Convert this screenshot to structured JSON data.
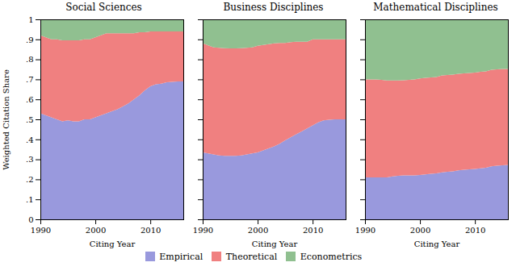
{
  "chart_data": [
    {
      "type": "area",
      "title": "Social Sciences",
      "xlabel": "Citing Year",
      "ylabel": "Weighted Citation Share",
      "stacked": true,
      "grid": false,
      "legend": "bottom",
      "x": [
        1990,
        1991,
        1992,
        1993,
        1994,
        1995,
        1996,
        1997,
        1998,
        1999,
        2000,
        2001,
        2002,
        2003,
        2004,
        2005,
        2006,
        2007,
        2008,
        2009,
        2010,
        2011,
        2012,
        2013,
        2014,
        2015,
        2016
      ],
      "xlim": [
        1990,
        2016
      ],
      "xticks": [
        1990,
        2000,
        2010
      ],
      "ylim": [
        0,
        1
      ],
      "yticks": [
        0,
        {
          "value": 0.1,
          "label": ".1"
        },
        {
          "value": 0.2,
          "label": ".2"
        },
        {
          "value": 0.3,
          "label": ".3"
        },
        {
          "value": 0.4,
          "label": ".4"
        },
        {
          "value": 0.5,
          "label": ".5"
        },
        {
          "value": 0.6,
          "label": ".6"
        },
        {
          "value": 0.7,
          "label": ".7"
        },
        {
          "value": 0.8,
          "label": ".8"
        },
        {
          "value": 0.9,
          "label": ".9"
        },
        1
      ],
      "series": [
        {
          "name": "Empirical",
          "color": "#9999dd",
          "values": [
            0.53,
            0.52,
            0.51,
            0.5,
            0.49,
            0.495,
            0.49,
            0.49,
            0.5,
            0.5,
            0.51,
            0.52,
            0.53,
            0.54,
            0.55,
            0.565,
            0.58,
            0.6,
            0.62,
            0.645,
            0.665,
            0.675,
            0.678,
            0.685,
            0.688,
            0.69,
            0.69
          ]
        },
        {
          "name": "Theoretical",
          "color": "#f08080",
          "values": [
            0.39,
            0.39,
            0.39,
            0.4,
            0.405,
            0.4,
            0.405,
            0.405,
            0.4,
            0.4,
            0.4,
            0.4,
            0.4,
            0.39,
            0.38,
            0.365,
            0.35,
            0.33,
            0.315,
            0.29,
            0.275,
            0.265,
            0.262,
            0.255,
            0.252,
            0.25,
            0.25
          ]
        },
        {
          "name": "Econometrics",
          "color": "#90c090",
          "values": [
            0.08,
            0.09,
            0.1,
            0.1,
            0.105,
            0.105,
            0.105,
            0.105,
            0.1,
            0.1,
            0.09,
            0.08,
            0.07,
            0.07,
            0.07,
            0.07,
            0.07,
            0.07,
            0.065,
            0.065,
            0.06,
            0.06,
            0.06,
            0.06,
            0.06,
            0.06,
            0.06
          ]
        }
      ]
    },
    {
      "type": "area",
      "title": "Business Disciplines",
      "xlabel": "Citing Year",
      "stacked": true,
      "grid": false,
      "tick_labels": "x",
      "x": [
        1990,
        1991,
        1992,
        1993,
        1994,
        1995,
        1996,
        1997,
        1998,
        1999,
        2000,
        2001,
        2002,
        2003,
        2004,
        2005,
        2006,
        2007,
        2008,
        2009,
        2010,
        2011,
        2012,
        2013,
        2014,
        2015,
        2016
      ],
      "xlim": [
        1990,
        2016
      ],
      "xticks": [
        1990,
        2000,
        2010
      ],
      "ylim": [
        0,
        1
      ],
      "yticks": [
        0,
        0.1,
        0.2,
        0.3,
        0.4,
        0.5,
        0.6,
        0.7,
        0.8,
        0.9,
        1
      ],
      "series": [
        {
          "name": "Empirical",
          "color": "#9999dd",
          "values": [
            0.335,
            0.33,
            0.325,
            0.32,
            0.318,
            0.318,
            0.318,
            0.32,
            0.325,
            0.33,
            0.335,
            0.345,
            0.355,
            0.365,
            0.378,
            0.395,
            0.41,
            0.425,
            0.44,
            0.455,
            0.47,
            0.485,
            0.495,
            0.498,
            0.5,
            0.5,
            0.5
          ]
        },
        {
          "name": "Theoretical",
          "color": "#f08080",
          "values": [
            0.545,
            0.54,
            0.535,
            0.538,
            0.538,
            0.537,
            0.537,
            0.536,
            0.533,
            0.53,
            0.533,
            0.527,
            0.521,
            0.515,
            0.504,
            0.487,
            0.476,
            0.463,
            0.448,
            0.433,
            0.43,
            0.415,
            0.405,
            0.402,
            0.4,
            0.4,
            0.4
          ]
        },
        {
          "name": "Econometrics",
          "color": "#90c090",
          "values": [
            0.12,
            0.13,
            0.14,
            0.142,
            0.144,
            0.145,
            0.145,
            0.144,
            0.142,
            0.14,
            0.132,
            0.128,
            0.124,
            0.12,
            0.118,
            0.118,
            0.114,
            0.112,
            0.112,
            0.112,
            0.1,
            0.1,
            0.1,
            0.1,
            0.1,
            0.1,
            0.1
          ]
        }
      ]
    },
    {
      "type": "area",
      "title": "Mathematical Disciplines",
      "xlabel": "Citing Year",
      "stacked": true,
      "grid": false,
      "tick_labels": "x",
      "x": [
        1990,
        1991,
        1992,
        1993,
        1994,
        1995,
        1996,
        1997,
        1998,
        1999,
        2000,
        2001,
        2002,
        2003,
        2004,
        2005,
        2006,
        2007,
        2008,
        2009,
        2010,
        2011,
        2012,
        2013,
        2014,
        2015,
        2016
      ],
      "xlim": [
        1990,
        2016
      ],
      "xticks": [
        1990,
        2000,
        2010
      ],
      "ylim": [
        0,
        1
      ],
      "yticks": [
        0,
        0.1,
        0.2,
        0.3,
        0.4,
        0.5,
        0.6,
        0.7,
        0.8,
        0.9,
        1
      ],
      "series": [
        {
          "name": "Empirical",
          "color": "#9999dd",
          "values": [
            0.21,
            0.21,
            0.21,
            0.21,
            0.21,
            0.215,
            0.218,
            0.22,
            0.22,
            0.22,
            0.222,
            0.225,
            0.228,
            0.23,
            0.235,
            0.238,
            0.24,
            0.245,
            0.248,
            0.25,
            0.252,
            0.255,
            0.258,
            0.265,
            0.268,
            0.27,
            0.272
          ]
        },
        {
          "name": "Theoretical",
          "color": "#f08080",
          "values": [
            0.49,
            0.49,
            0.49,
            0.488,
            0.485,
            0.48,
            0.477,
            0.476,
            0.478,
            0.48,
            0.483,
            0.483,
            0.482,
            0.482,
            0.485,
            0.484,
            0.484,
            0.483,
            0.482,
            0.482,
            0.482,
            0.483,
            0.482,
            0.483,
            0.482,
            0.482,
            0.48
          ]
        },
        {
          "name": "Econometrics",
          "color": "#90c090",
          "values": [
            0.3,
            0.3,
            0.3,
            0.302,
            0.305,
            0.305,
            0.305,
            0.304,
            0.302,
            0.3,
            0.295,
            0.292,
            0.29,
            0.288,
            0.28,
            0.278,
            0.276,
            0.272,
            0.27,
            0.268,
            0.266,
            0.262,
            0.26,
            0.252,
            0.25,
            0.248,
            0.248
          ]
        }
      ]
    }
  ]
}
